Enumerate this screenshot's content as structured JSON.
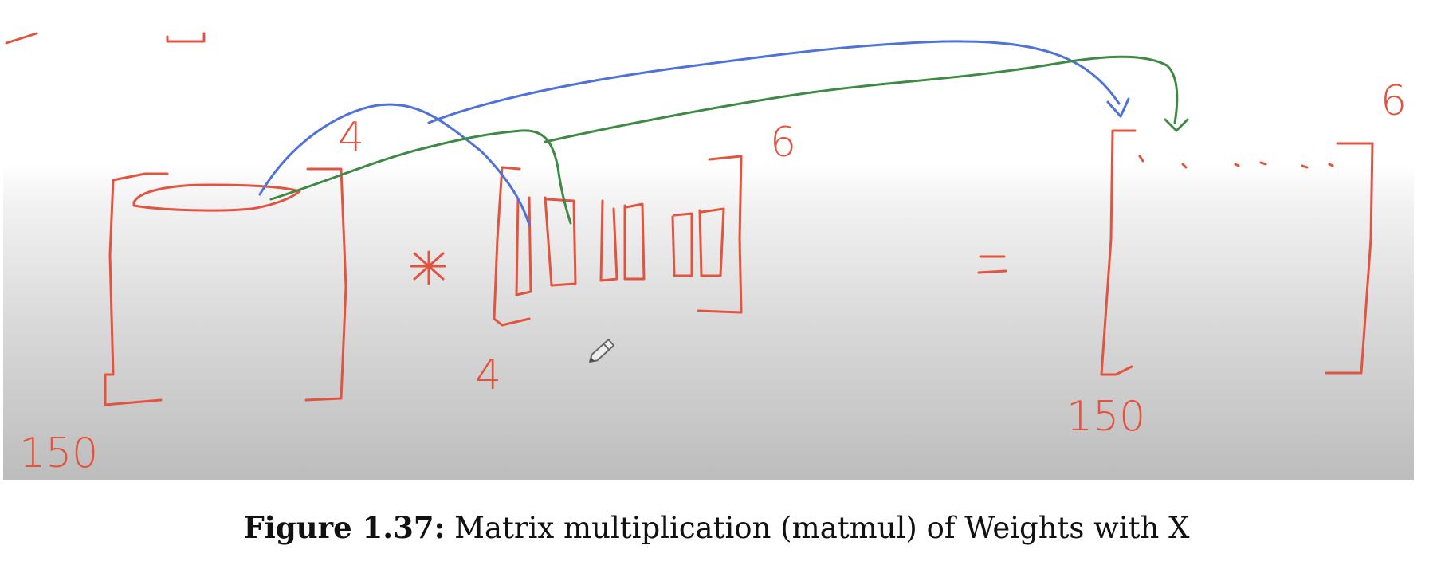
{
  "figure": {
    "left_matrix": {
      "rows_label": "150",
      "cols_label": "4"
    },
    "weights_matrix": {
      "rows_label": "4",
      "cols_label": "6"
    },
    "result_matrix": {
      "rows_label": "150",
      "cols_label": "6"
    },
    "multiply_symbol": "*",
    "equals_symbol": "=",
    "colors": {
      "ink_red": "#e2543f",
      "ink_blue": "#4f72d8",
      "ink_green": "#3e8a44"
    },
    "icons": [
      "pencil-cursor-icon"
    ]
  },
  "caption": {
    "prefix": "Figure 1.37:",
    "text": "Matrix multiplication (matmul) of Weights with X"
  }
}
